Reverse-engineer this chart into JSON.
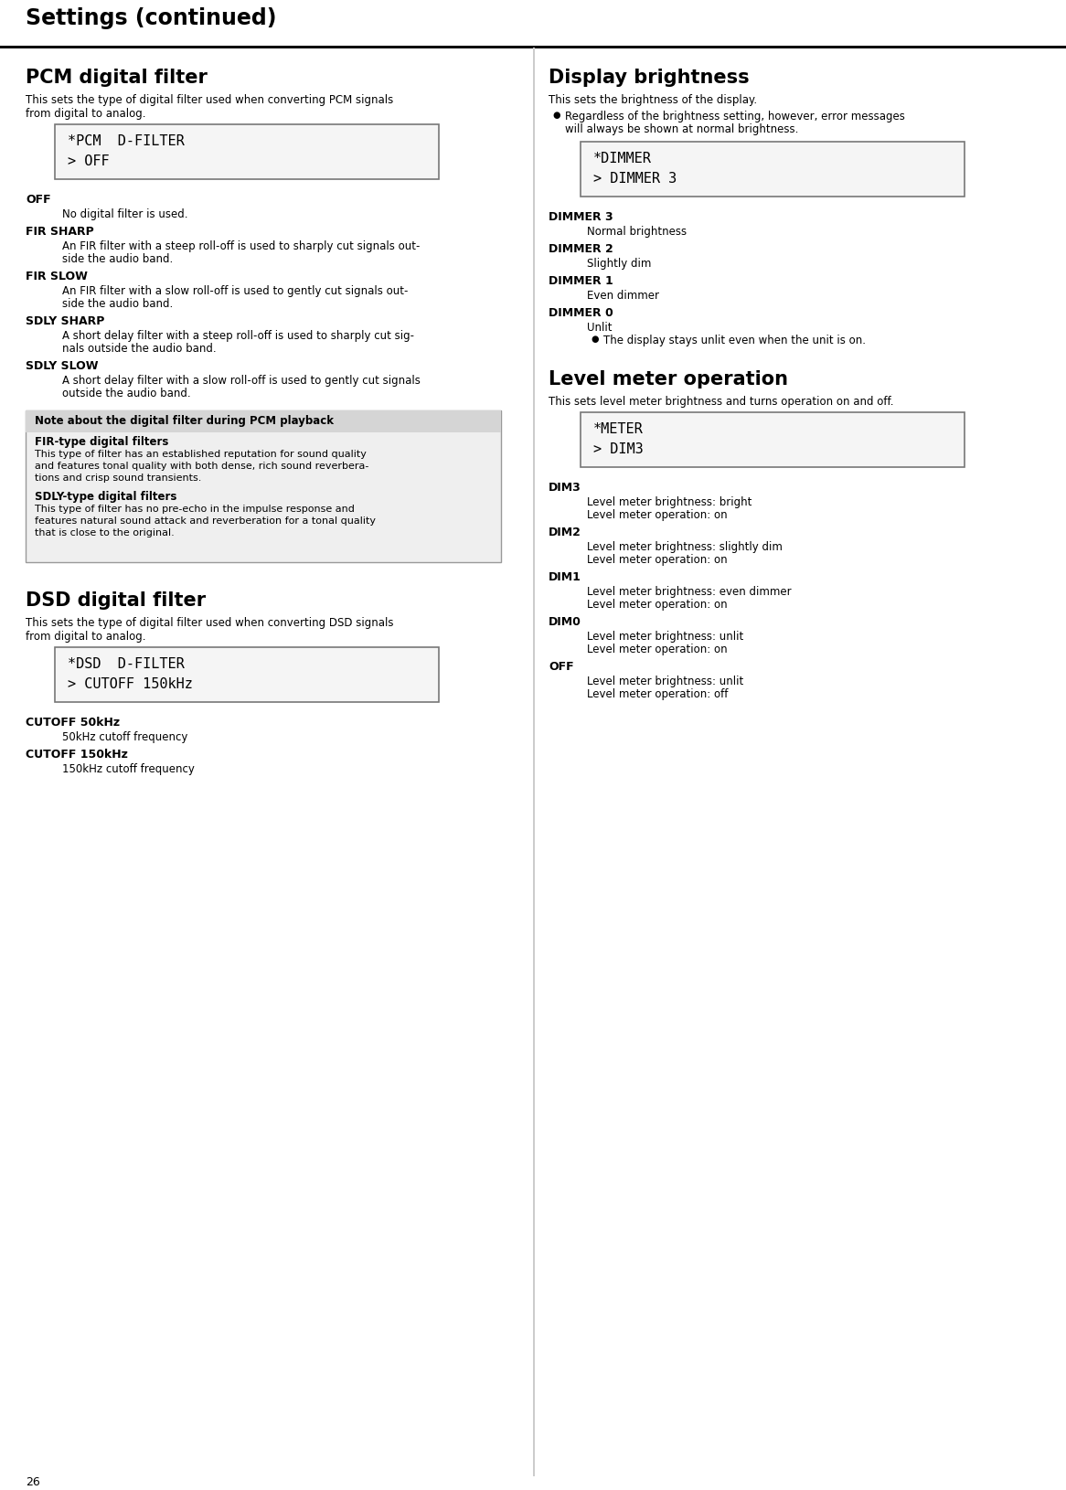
{
  "page_title": "Settings (continued)",
  "page_number": "26",
  "bg_color": "#ffffff",
  "sections": {
    "pcm": {
      "title": "PCM digital filter",
      "description1": "This sets the type of digital filter used when converting PCM signals",
      "description2": "from digital to analog.",
      "display_lines": [
        "*PCM  D-FILTER",
        "> OFF"
      ],
      "items": [
        {
          "term": "OFF",
          "desc": [
            "No digital filter is used."
          ]
        },
        {
          "term": "FIR SHARP",
          "desc": [
            "An FIR filter with a steep roll-off is used to sharply cut signals out-",
            "side the audio band."
          ]
        },
        {
          "term": "FIR SLOW",
          "desc": [
            "An FIR filter with a slow roll-off is used to gently cut signals out-",
            "side the audio band."
          ]
        },
        {
          "term": "SDLY SHARP",
          "desc": [
            "A short delay filter with a steep roll-off is used to sharply cut sig-",
            "nals outside the audio band."
          ]
        },
        {
          "term": "SDLY SLOW",
          "desc": [
            "A short delay filter with a slow roll-off is used to gently cut signals",
            "outside the audio band."
          ]
        }
      ],
      "note_title": "Note about the digital filter during PCM playback",
      "note_sections": [
        {
          "subtitle": "FIR-type digital filters",
          "text": [
            "This type of filter has an established reputation for sound quality",
            "and features tonal quality with both dense, rich sound reverbera-",
            "tions and crisp sound transients."
          ]
        },
        {
          "subtitle": "SDLY-type digital filters",
          "text": [
            "This type of filter has no pre-echo in the impulse response and",
            "features natural sound attack and reverberation for a tonal quality",
            "that is close to the original."
          ]
        }
      ]
    },
    "dsd": {
      "title": "DSD digital filter",
      "description1": "This sets the type of digital filter used when converting DSD signals",
      "description2": "from digital to analog.",
      "display_lines": [
        "*DSD  D-FILTER",
        "> CUTOFF 150kHz"
      ],
      "items": [
        {
          "term": "CUTOFF 50kHz",
          "desc": [
            "50kHz cutoff frequency"
          ]
        },
        {
          "term": "CUTOFF 150kHz",
          "desc": [
            "150kHz cutoff frequency"
          ]
        }
      ]
    },
    "display": {
      "title": "Display brightness",
      "description": "This sets the brightness of the display.",
      "bullet": [
        "Regardless of the brightness setting, however, error messages",
        "will always be shown at normal brightness."
      ],
      "display_lines": [
        "*DIMMER",
        "> DIMMER 3"
      ],
      "items": [
        {
          "term": "DIMMER 3",
          "desc": [
            "Normal brightness"
          ]
        },
        {
          "term": "DIMMER 2",
          "desc": [
            "Slightly dim"
          ]
        },
        {
          "term": "DIMMER 1",
          "desc": [
            "Even dimmer"
          ]
        },
        {
          "term": "DIMMER 0",
          "desc": [
            "Unlit"
          ],
          "bullet": "The display stays unlit even when the unit is on."
        }
      ]
    },
    "meter": {
      "title": "Level meter operation",
      "description": "This sets level meter brightness and turns operation on and off.",
      "display_lines": [
        "*METER",
        "> DIM3"
      ],
      "items": [
        {
          "term": "DIM3",
          "desc": [
            "Level meter brightness: bright",
            "Level meter operation: on"
          ]
        },
        {
          "term": "DIM2",
          "desc": [
            "Level meter brightness: slightly dim",
            "Level meter operation: on"
          ]
        },
        {
          "term": "DIM1",
          "desc": [
            "Level meter brightness: even dimmer",
            "Level meter operation: on"
          ]
        },
        {
          "term": "DIM0",
          "desc": [
            "Level meter brightness: unlit",
            "Level meter operation: on"
          ]
        },
        {
          "term": "OFF",
          "desc": [
            "Level meter brightness: unlit",
            "Level meter operation: off"
          ]
        }
      ]
    }
  }
}
